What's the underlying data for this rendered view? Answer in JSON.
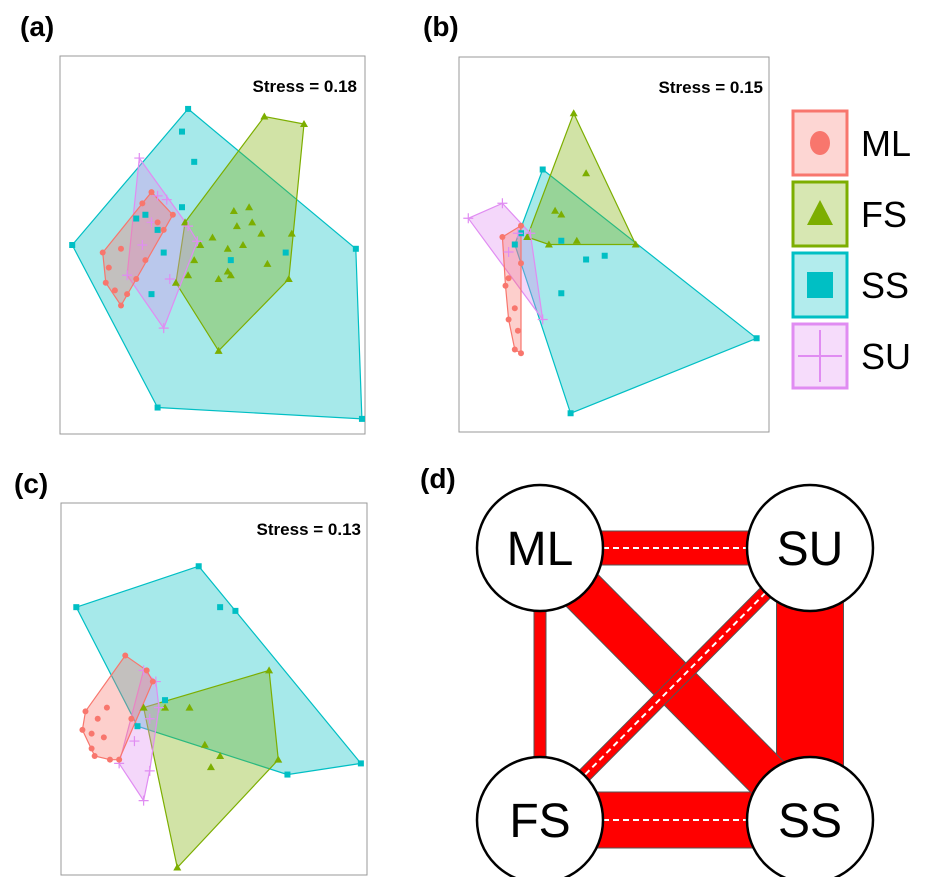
{
  "colors": {
    "ML": "#f8766d",
    "FS": "#7cae00",
    "SS": "#00bfc4",
    "SU": "#e08cf2",
    "edge": "#ff0000"
  },
  "panels": {
    "a": {
      "label": "(a)",
      "stress": "Stress = 0.18"
    },
    "b": {
      "label": "(b)",
      "stress": "Stress = 0.15"
    },
    "c": {
      "label": "(c)",
      "stress": "Stress = 0.13"
    },
    "d": {
      "label": "(d)"
    }
  },
  "legend": [
    {
      "key": "ML",
      "label": "ML",
      "icon": "circle-icon"
    },
    {
      "key": "FS",
      "label": "FS",
      "icon": "triangle-icon"
    },
    {
      "key": "SS",
      "label": "SS",
      "icon": "square-icon"
    },
    {
      "key": "SU",
      "label": "SU",
      "icon": "plus-icon"
    }
  ],
  "chart_data": [
    {
      "type": "scatter",
      "panel": "(a)",
      "annotation": "Stress = 0.18",
      "xlim": [
        0,
        100
      ],
      "ylim": [
        0,
        100
      ],
      "axes_ticks": false,
      "series": [
        {
          "name": "ML",
          "marker": "circle",
          "hull": true,
          "points": [
            [
              14,
              48
            ],
            [
              16,
              44
            ],
            [
              15,
              40
            ],
            [
              18,
              38
            ],
            [
              20,
              34
            ],
            [
              22,
              37
            ],
            [
              25,
              41
            ],
            [
              28,
              46
            ],
            [
              32,
              56
            ],
            [
              34,
              54
            ],
            [
              37,
              58
            ],
            [
              30,
              64
            ],
            [
              27,
              61
            ],
            [
              20,
              49
            ]
          ]
        },
        {
          "name": "FS",
          "marker": "triangle",
          "hull": true,
          "points": [
            [
              67,
              84
            ],
            [
              80,
              82
            ],
            [
              76,
              53
            ],
            [
              75,
              41
            ],
            [
              52,
              22
            ],
            [
              38,
              40
            ],
            [
              42,
              42
            ],
            [
              44,
              46
            ],
            [
              46,
              50
            ],
            [
              50,
              52
            ],
            [
              55,
              49
            ],
            [
              60,
              50
            ],
            [
              58,
              55
            ],
            [
              57,
              59
            ],
            [
              62,
              60
            ],
            [
              66,
              53
            ],
            [
              68,
              45
            ],
            [
              56,
              42
            ],
            [
              52,
              41
            ],
            [
              63,
              56
            ],
            [
              55,
              43
            ],
            [
              41,
              56
            ]
          ]
        },
        {
          "name": "SS",
          "marker": "square",
          "hull": true,
          "points": [
            [
              4,
              50
            ],
            [
              42,
              86
            ],
            [
              97,
              49
            ],
            [
              99,
              4
            ],
            [
              32,
              7
            ],
            [
              40,
              80
            ],
            [
              44,
              72
            ],
            [
              25,
              57
            ],
            [
              28,
              58
            ],
            [
              32,
              54
            ],
            [
              34,
              48
            ],
            [
              30,
              37
            ],
            [
              56,
              46
            ],
            [
              74,
              48
            ],
            [
              40,
              60
            ]
          ]
        },
        {
          "name": "SU",
          "marker": "plus",
          "hull": true,
          "points": [
            [
              26,
              73
            ],
            [
              35,
              62
            ],
            [
              42,
              55
            ],
            [
              45,
              51
            ],
            [
              36,
              41
            ],
            [
              34,
              28
            ],
            [
              22,
              42
            ],
            [
              27,
              50
            ],
            [
              30,
              56
            ],
            [
              32,
              63
            ]
          ]
        }
      ]
    },
    {
      "type": "scatter",
      "panel": "(b)",
      "annotation": "Stress = 0.15",
      "xlim": [
        0,
        100
      ],
      "ylim": [
        0,
        100
      ],
      "axes_ticks": false,
      "series": [
        {
          "name": "ML",
          "marker": "circle",
          "hull": true,
          "points": [
            [
              14,
              52
            ],
            [
              20,
              55
            ],
            [
              15,
              39
            ],
            [
              16,
              30
            ],
            [
              18,
              22
            ],
            [
              20,
              21
            ],
            [
              19,
              27
            ],
            [
              18,
              33
            ],
            [
              16,
              41
            ],
            [
              20,
              45
            ]
          ]
        },
        {
          "name": "FS",
          "marker": "triangle",
          "hull": true,
          "points": [
            [
              37,
              85
            ],
            [
              41,
              69
            ],
            [
              57,
              50
            ],
            [
              38,
              51
            ],
            [
              22,
              52
            ],
            [
              29,
              50
            ],
            [
              31,
              59
            ],
            [
              33,
              58
            ]
          ]
        },
        {
          "name": "SS",
          "marker": "square",
          "hull": true,
          "points": [
            [
              27,
              70
            ],
            [
              96,
              25
            ],
            [
              36,
              5
            ],
            [
              18,
              50
            ],
            [
              20,
              53
            ],
            [
              33,
              51
            ],
            [
              41,
              46
            ],
            [
              47,
              47
            ],
            [
              33,
              37
            ]
          ]
        },
        {
          "name": "SU",
          "marker": "plus",
          "hull": true,
          "points": [
            [
              3,
              57
            ],
            [
              14,
              61
            ],
            [
              23,
              53
            ],
            [
              27,
              30
            ],
            [
              19,
              53
            ],
            [
              16,
              48
            ]
          ]
        }
      ]
    },
    {
      "type": "scatter",
      "panel": "(c)",
      "annotation": "Stress = 0.13",
      "xlim": [
        0,
        100
      ],
      "ylim": [
        0,
        100
      ],
      "axes_ticks": false,
      "series": [
        {
          "name": "ML",
          "marker": "circle",
          "hull": true,
          "points": [
            [
              21,
              59
            ],
            [
              28,
              55
            ],
            [
              30,
              52
            ],
            [
              23,
              42
            ],
            [
              19,
              31
            ],
            [
              16,
              31
            ],
            [
              10,
              34
            ],
            [
              7,
              39
            ],
            [
              8,
              44
            ],
            [
              10,
              38
            ],
            [
              11,
              32
            ],
            [
              14,
              37
            ],
            [
              15,
              45
            ],
            [
              12,
              42
            ]
          ]
        },
        {
          "name": "FS",
          "marker": "triangle",
          "hull": true,
          "points": [
            [
              68,
              55
            ],
            [
              71,
              31
            ],
            [
              38,
              2
            ],
            [
              27,
              45
            ],
            [
              34,
              45
            ],
            [
              42,
              45
            ],
            [
              47,
              35
            ],
            [
              49,
              29
            ],
            [
              52,
              32
            ]
          ]
        },
        {
          "name": "SS",
          "marker": "square",
          "hull": true,
          "points": [
            [
              45,
              83
            ],
            [
              98,
              30
            ],
            [
              74,
              27
            ],
            [
              25,
              40
            ],
            [
              5,
              72
            ],
            [
              52,
              72
            ],
            [
              57,
              71
            ],
            [
              34,
              47
            ]
          ]
        },
        {
          "name": "SU",
          "marker": "plus",
          "hull": true,
          "points": [
            [
              27,
              55
            ],
            [
              31,
              52
            ],
            [
              32,
              45
            ],
            [
              29,
              28
            ],
            [
              27,
              20
            ],
            [
              19,
              30
            ],
            [
              24,
              36
            ],
            [
              29,
              42
            ]
          ]
        }
      ]
    },
    {
      "type": "network",
      "panel": "(d)",
      "nodes": [
        "ML",
        "SU",
        "FS",
        "SS"
      ],
      "edges": [
        {
          "from": "ML",
          "to": "SU",
          "weight": 3,
          "dashed": true
        },
        {
          "from": "FS",
          "to": "SS",
          "weight": 5,
          "dashed": true
        },
        {
          "from": "ML",
          "to": "FS",
          "weight": 1,
          "dashed": false
        },
        {
          "from": "SU",
          "to": "SS",
          "weight": 6,
          "dashed": false
        },
        {
          "from": "ML",
          "to": "SS",
          "weight": 4,
          "dashed": false
        },
        {
          "from": "SU",
          "to": "FS",
          "weight": 1.2,
          "dashed": true
        }
      ]
    }
  ]
}
